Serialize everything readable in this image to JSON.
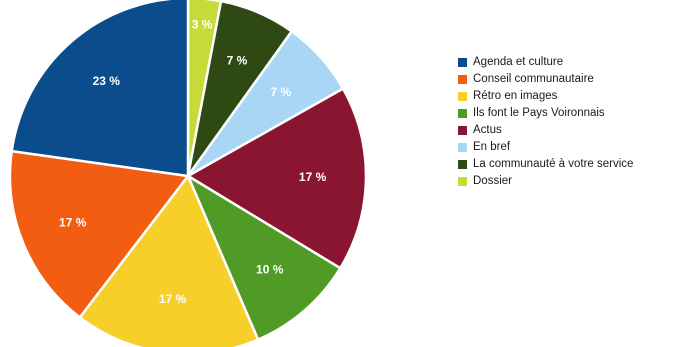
{
  "chart_data": {
    "type": "pie",
    "title": "",
    "slices": [
      {
        "label": "Agenda et culture",
        "value": 23,
        "display": "23 %",
        "color": "#0b4c8c"
      },
      {
        "label": "Conseil communautaire",
        "value": 17,
        "display": "17 %",
        "color": "#f25d12"
      },
      {
        "label": "Rétro en images",
        "value": 17,
        "display": "17 %",
        "color": "#f6cf2b"
      },
      {
        "label": "Ils font le Pays Voironnais",
        "value": 10,
        "display": "10 %",
        "color": "#4f9b26"
      },
      {
        "label": "Actus",
        "value": 17,
        "display": "17 %",
        "color": "#8a1530"
      },
      {
        "label": "En bref",
        "value": 7,
        "display": "7 %",
        "color": "#a9d6f5"
      },
      {
        "label": "La communauté à votre service",
        "value": 7,
        "display": "7 %",
        "color": "#2e4a12"
      },
      {
        "label": "Dossier",
        "value": 3,
        "display": "3 %",
        "color": "#c6da3a"
      }
    ],
    "wedge_order": [
      "Dossier",
      "La communauté à votre service",
      "En bref",
      "Actus",
      "Ils font le Pays Voironnais",
      "Rétro en images",
      "Conseil communautaire",
      "Agenda et culture"
    ],
    "start": "top",
    "direction": "clockwise",
    "legend_position": "right"
  }
}
